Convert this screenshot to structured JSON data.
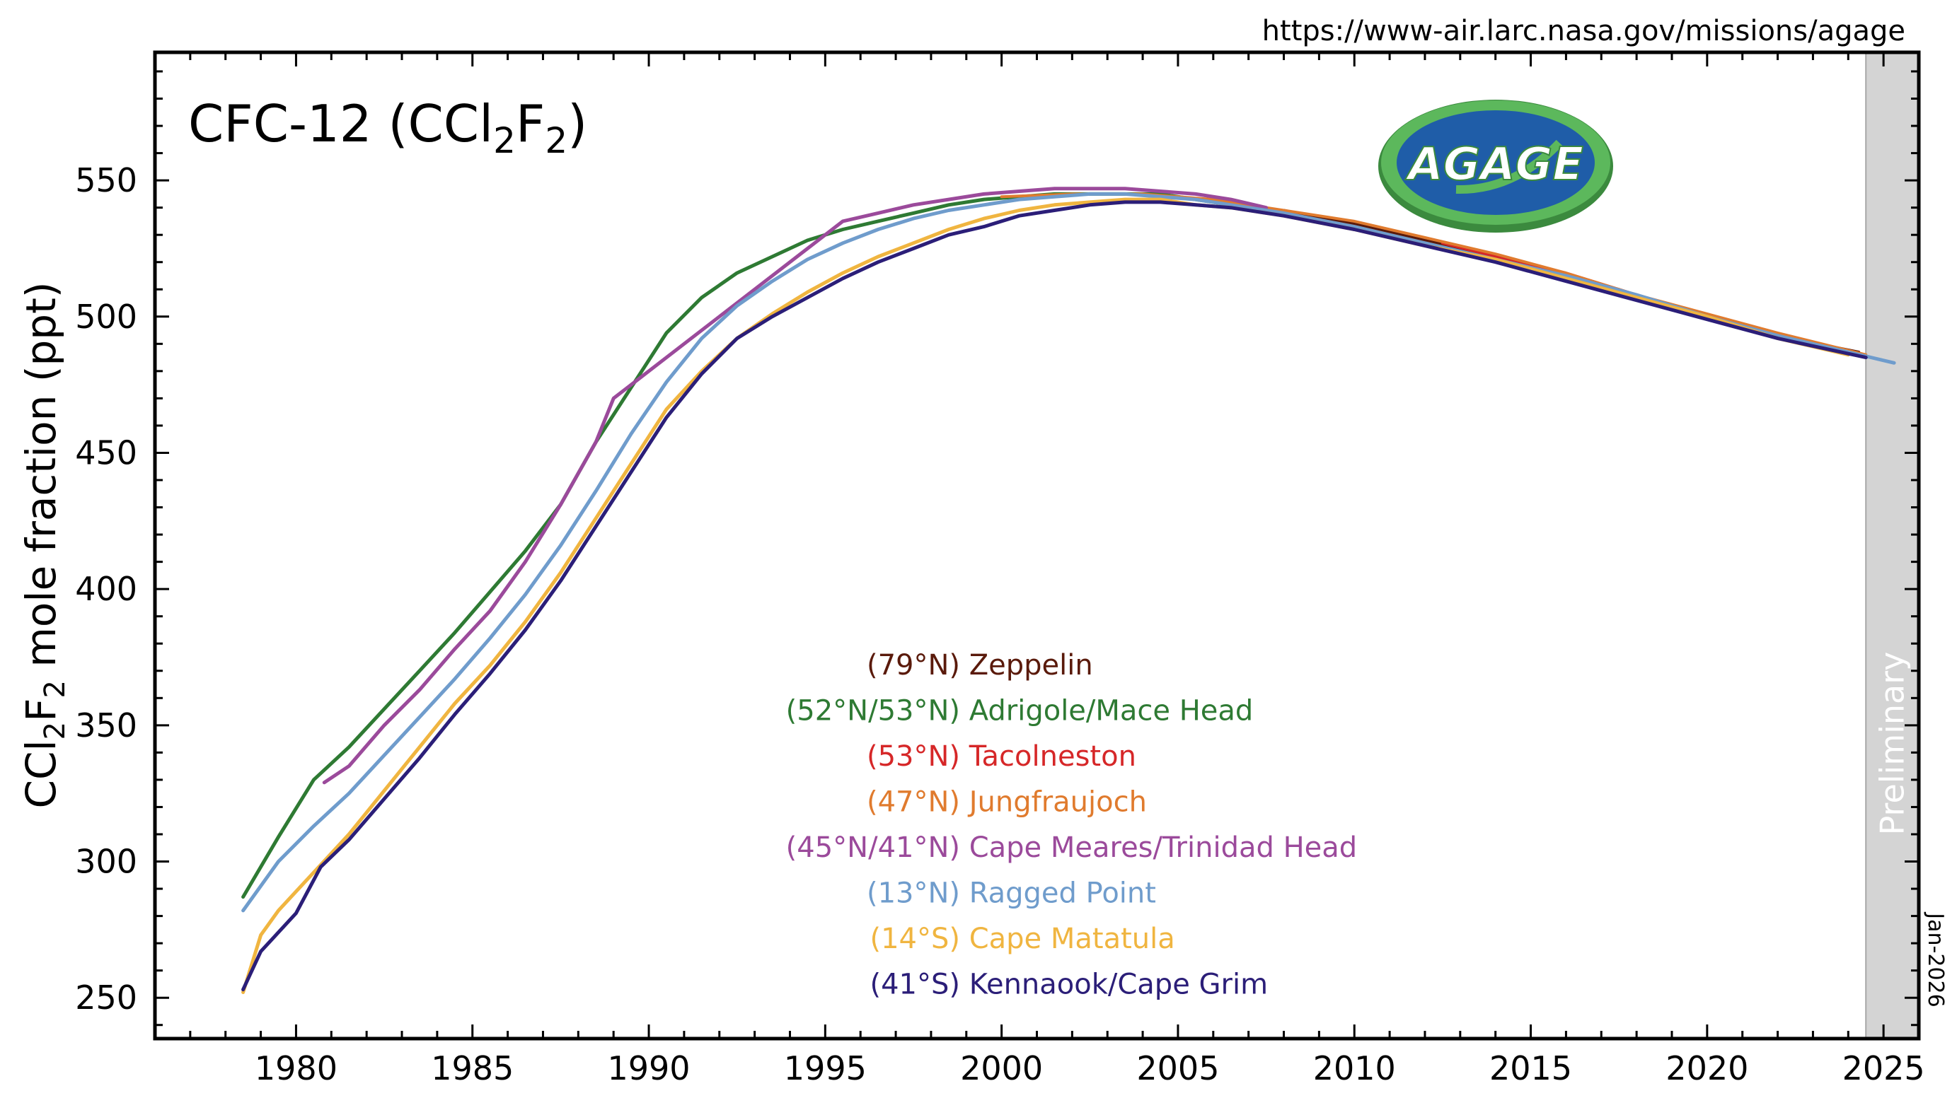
{
  "source_url": "https://www-air.larc.nasa.gov/missions/agage",
  "logo_text": "AGAGE",
  "date_stamp": "Jan-2026",
  "preliminary_label": "Preliminary",
  "chart_data": {
    "type": "line",
    "title": {
      "base": "CFC-12 (CCl",
      "sub1": "2",
      "mid": "F",
      "sub2": "2",
      "end": ")"
    },
    "ylabel": {
      "base": "CCl",
      "sub1": "2",
      "mid": "F",
      "sub2": "2",
      "end": " mole fraction (ppt)"
    },
    "xlabel": "",
    "xlim": [
      1976,
      2026
    ],
    "ylim": [
      235,
      597
    ],
    "xticks": [
      1980,
      1985,
      1990,
      1995,
      2000,
      2005,
      2010,
      2015,
      2020,
      2025
    ],
    "yticks": [
      250,
      300,
      350,
      400,
      450,
      500,
      550
    ],
    "preliminary_range": [
      2024.5,
      2026
    ],
    "grid": false,
    "legend_position": "center",
    "series": [
      {
        "name": "(79°N) Zeppelin",
        "color": "#5a1a0b",
        "stroke_width": 4,
        "x": [
          2008.0,
          2010,
          2012,
          2014,
          2016,
          2018,
          2020,
          2022,
          2024.3
        ],
        "y": [
          539,
          534,
          528,
          522,
          515,
          507,
          500,
          493,
          487
        ]
      },
      {
        "name": "(52°N/53°N) Adrigole/Mace Head",
        "color": "#2e7a33",
        "stroke_width": 5,
        "x": [
          1978.5,
          1979.5,
          1980.5,
          1981.5,
          1982.5,
          1983.5,
          1984.5,
          1985.5,
          1986.5,
          1987.5,
          1988.5,
          1989.5,
          1990.5,
          1991.5,
          1992.5,
          1993.5,
          1994.5,
          1995.5,
          1996.5,
          1997.5,
          1998.5,
          1999.5,
          2000.5,
          2001.5,
          2002.5,
          2003.5,
          2004.5,
          2005.5,
          2006.5,
          2007.5
        ],
        "y": [
          287,
          309,
          330,
          342,
          356,
          370,
          384,
          399,
          414,
          431,
          454,
          474,
          494,
          507,
          516,
          522,
          528,
          532,
          535,
          538,
          541,
          543,
          544,
          545,
          545,
          545,
          545,
          543,
          541,
          539
        ]
      },
      {
        "name": "(53°N) Tacolneston",
        "color": "#d62728",
        "stroke_width": 4,
        "x": [
          2012.5,
          2014,
          2016,
          2018,
          2020,
          2022,
          2024,
          2025.3
        ],
        "y": [
          527,
          522,
          516,
          508,
          500,
          493,
          487,
          483
        ]
      },
      {
        "name": "(47°N) Jungfraujoch",
        "color": "#e07b2e",
        "stroke_width": 4,
        "x": [
          2000.0,
          2002,
          2004,
          2006,
          2007,
          2008,
          2010,
          2012,
          2014,
          2016,
          2018,
          2020,
          2022,
          2024.5
        ],
        "y": [
          544,
          545,
          545,
          543,
          541,
          539,
          535,
          529,
          523,
          516,
          508,
          501,
          494,
          486
        ]
      },
      {
        "name": "(45°N/41°N) Cape Meares/Trinidad Head",
        "color": "#9b4a9b",
        "stroke_width": 5,
        "x": [
          1980.8,
          1981.5,
          1982.5,
          1983.5,
          1984.5,
          1985.5,
          1986.5,
          1987.5,
          1988.5,
          1989.0,
          1995.5,
          1996.5,
          1997.5,
          1998.5,
          1999.5,
          2000.5,
          2001.5,
          2002.5,
          2003.5,
          2004.5,
          2005.5,
          2006.5,
          2007.5
        ],
        "y": [
          329,
          335,
          350,
          363,
          378,
          392,
          410,
          431,
          454,
          470,
          535,
          538,
          541,
          543,
          545,
          546,
          547,
          547,
          547,
          546,
          545,
          543,
          540
        ]
      },
      {
        "name": "(13°N) Ragged Point",
        "color": "#6f9ccc",
        "stroke_width": 5,
        "x": [
          1978.5,
          1979.5,
          1980.5,
          1981.5,
          1982.5,
          1983.5,
          1984.5,
          1985.5,
          1986.5,
          1987.5,
          1988.5,
          1989.5,
          1990.5,
          1991.5,
          1992.5,
          1993.5,
          1994.5,
          1995.5,
          1996.5,
          1997.5,
          1998.5,
          1999.5,
          2000.5,
          2001.5,
          2002.5,
          2003.5,
          2004.5,
          2005.5,
          2006.5,
          2008,
          2010,
          2012,
          2014,
          2016,
          2018,
          2020,
          2022,
          2024,
          2025.3
        ],
        "y": [
          282,
          300,
          313,
          325,
          339,
          353,
          367,
          382,
          398,
          416,
          436,
          457,
          476,
          492,
          504,
          513,
          521,
          527,
          532,
          536,
          539,
          541,
          543,
          544,
          545,
          545,
          544,
          543,
          541,
          538,
          533,
          527,
          521,
          515,
          508,
          500,
          493,
          487,
          483
        ]
      },
      {
        "name": "(14°S) Cape Matatula",
        "color": "#f0b540",
        "stroke_width": 5,
        "x": [
          1978.5,
          1979.0,
          1979.5,
          1980.5,
          1981.5,
          1982.5,
          1983.5,
          1984.5,
          1985.5,
          1986.5,
          1987.5,
          1988.5,
          1989.5,
          1990.5,
          1991.5,
          1992.5,
          1993.5,
          1994.5,
          1995.5,
          1996.5,
          1997.5,
          1998.5,
          1999.5,
          2000.5,
          2001.5,
          2002.5,
          2003.5,
          2004.5,
          2005.5,
          2006.5,
          2008,
          2010,
          2012,
          2014,
          2016,
          2018,
          2020,
          2022,
          2024
        ],
        "y": [
          252,
          273,
          282,
          296,
          310,
          326,
          342,
          358,
          372,
          388,
          406,
          426,
          446,
          466,
          480,
          492,
          501,
          509,
          516,
          522,
          527,
          532,
          536,
          539,
          541,
          542,
          543,
          543,
          541,
          540,
          537,
          532,
          526,
          521,
          514,
          507,
          500,
          492,
          486
        ]
      },
      {
        "name": "(41°S) Kennaook/Cape Grim",
        "color": "#2b1e78",
        "stroke_width": 5,
        "x": [
          1978.5,
          1979.0,
          1979.5,
          1980.0,
          1980.7,
          1981.5,
          1982.5,
          1983.5,
          1984.5,
          1985.5,
          1986.5,
          1987.5,
          1988.5,
          1989.5,
          1990.5,
          1991.5,
          1992.5,
          1993.5,
          1994.5,
          1995.5,
          1996.5,
          1997.5,
          1998.5,
          1999.5,
          2000.5,
          2001.5,
          2002.5,
          2003.5,
          2004.5,
          2005.5,
          2006.5,
          2008,
          2010,
          2012,
          2014,
          2016,
          2018,
          2020,
          2022,
          2024.5
        ],
        "y": [
          253,
          267,
          274,
          281,
          298,
          308,
          323,
          338,
          354,
          369,
          385,
          403,
          423,
          443,
          463,
          479,
          492,
          500,
          507,
          514,
          520,
          525,
          530,
          533,
          537,
          539,
          541,
          542,
          542,
          541,
          540,
          537,
          532,
          526,
          520,
          513,
          506,
          499,
          492,
          485
        ]
      }
    ]
  }
}
